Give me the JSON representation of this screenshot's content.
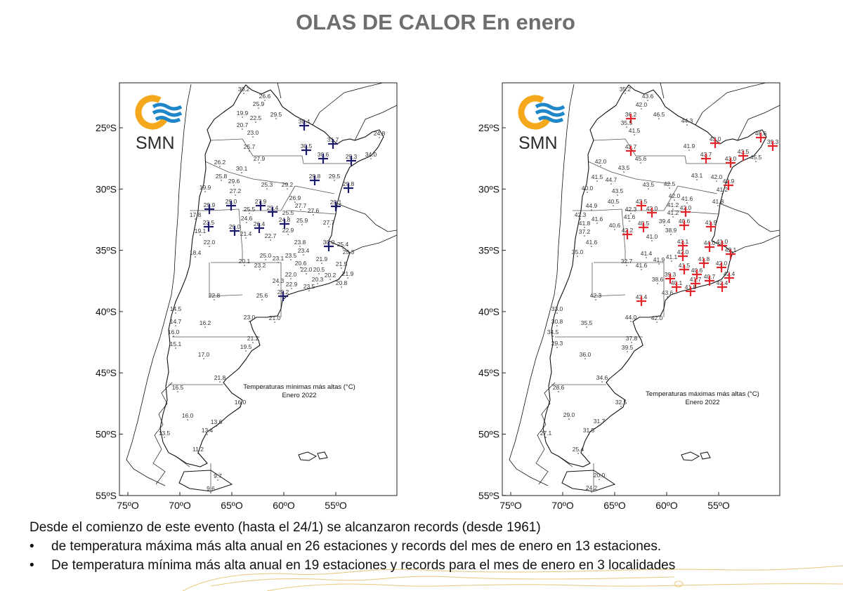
{
  "title": "OLAS DE CALOR En enero",
  "logo_text": "SMN",
  "axes": {
    "lat_labels": [
      "25ºS",
      "30ºS",
      "35ºS",
      "40ºS",
      "45ºS",
      "50ºS",
      "55ºS"
    ],
    "lon_labels": [
      "75ºO",
      "70ºO",
      "65ºO",
      "60ºO",
      "55ºO"
    ]
  },
  "colors": {
    "min_record_marker": "#1c1c6e",
    "max_record_marker": "#e3262b",
    "logo_sun": "#f5a81c",
    "logo_waves": "#1f86c8",
    "title": "#6e6e6e"
  },
  "left_map": {
    "caption_line1": "Temperaturas mínimas más altas (°C)",
    "caption_line2": "Enero 2022",
    "stations": [
      {
        "t": "30.2",
        "rec": false
      },
      {
        "t": "26.6",
        "rec": false
      },
      {
        "t": "25.9",
        "rec": false
      },
      {
        "t": "19.9",
        "rec": false
      },
      {
        "t": "22.5",
        "rec": false
      },
      {
        "t": "20.7",
        "rec": false
      },
      {
        "t": "23.0",
        "rec": false
      },
      {
        "t": "29.5",
        "rec": false
      },
      {
        "t": "30.4",
        "rec": true
      },
      {
        "t": "30.5",
        "rec": true
      },
      {
        "t": "30.6",
        "rec": true
      },
      {
        "t": "31.7",
        "rec": true
      },
      {
        "t": "29.3",
        "rec": true
      },
      {
        "t": "34.0",
        "rec": false
      },
      {
        "t": "24.8",
        "rec": false
      },
      {
        "t": "25.7",
        "rec": false
      },
      {
        "t": "27.9",
        "rec": false
      },
      {
        "t": "26.2",
        "rec": false
      },
      {
        "t": "30.1",
        "rec": false
      },
      {
        "t": "25.8",
        "rec": false
      },
      {
        "t": "29.6",
        "rec": false
      },
      {
        "t": "29.8",
        "rec": true
      },
      {
        "t": "29.5",
        "rec": false
      },
      {
        "t": "29.8",
        "rec": true
      },
      {
        "t": "25.3",
        "rec": false
      },
      {
        "t": "29.2",
        "rec": false
      },
      {
        "t": "19.9",
        "rec": false
      },
      {
        "t": "27.2",
        "rec": false
      },
      {
        "t": "29.9",
        "rec": true
      },
      {
        "t": "29.0",
        "rec": true
      },
      {
        "t": "27.9",
        "rec": true
      },
      {
        "t": "29.4",
        "rec": true
      },
      {
        "t": "25.5",
        "rec": false
      },
      {
        "t": "26.9",
        "rec": false
      },
      {
        "t": "27.7",
        "rec": false
      },
      {
        "t": "27.6",
        "rec": false
      },
      {
        "t": "29.1",
        "rec": true
      },
      {
        "t": "17.8",
        "rec": false
      },
      {
        "t": "23.5",
        "rec": true
      },
      {
        "t": "19.1",
        "rec": false
      },
      {
        "t": "24.6",
        "rec": false
      },
      {
        "t": "29.0",
        "rec": true
      },
      {
        "t": "21.4",
        "rec": false
      },
      {
        "t": "26.4",
        "rec": true
      },
      {
        "t": "25.5",
        "rec": false
      },
      {
        "t": "24.8",
        "rec": true
      },
      {
        "t": "25.9",
        "rec": false
      },
      {
        "t": "27.7",
        "rec": false
      },
      {
        "t": "22.0",
        "rec": false
      },
      {
        "t": "22.7",
        "rec": false
      },
      {
        "t": "22.9",
        "rec": false
      },
      {
        "t": "23.8",
        "rec": false
      },
      {
        "t": "30.0",
        "rec": true
      },
      {
        "t": "25.4",
        "rec": false
      },
      {
        "t": "25.3",
        "rec": false
      },
      {
        "t": "18.4",
        "rec": false
      },
      {
        "t": "23.4",
        "rec": false
      },
      {
        "t": "25.0",
        "rec": false
      },
      {
        "t": "23.1",
        "rec": false
      },
      {
        "t": "23.5",
        "rec": false
      },
      {
        "t": "20.6",
        "rec": false
      },
      {
        "t": "21.9",
        "rec": false
      },
      {
        "t": "21.5",
        "rec": false
      },
      {
        "t": "20.1",
        "rec": false
      },
      {
        "t": "23.2",
        "rec": false
      },
      {
        "t": "22.0",
        "rec": false
      },
      {
        "t": "20.5",
        "rec": false
      },
      {
        "t": "20.2",
        "rec": false
      },
      {
        "t": "21.9",
        "rec": false
      },
      {
        "t": "22.0",
        "rec": false
      },
      {
        "t": "24.3",
        "rec": false
      },
      {
        "t": "20.3",
        "rec": false
      },
      {
        "t": "20.8",
        "rec": false
      },
      {
        "t": "22.9",
        "rec": false
      },
      {
        "t": "23.5",
        "rec": false
      },
      {
        "t": "29.2",
        "rec": true
      },
      {
        "t": "25.6",
        "rec": false
      },
      {
        "t": "22.8",
        "rec": false
      },
      {
        "t": "14.5",
        "rec": false
      },
      {
        "t": "14.7",
        "rec": false
      },
      {
        "t": "16.2",
        "rec": false
      },
      {
        "t": "23.0",
        "rec": false
      },
      {
        "t": "21.0",
        "rec": false
      },
      {
        "t": "16.0",
        "rec": false
      },
      {
        "t": "15.1",
        "rec": false
      },
      {
        "t": "17.0",
        "rec": false
      },
      {
        "t": "21.2",
        "rec": false
      },
      {
        "t": "19.5",
        "rec": false
      },
      {
        "t": "21.8",
        "rec": false
      },
      {
        "t": "16.5",
        "rec": false
      },
      {
        "t": "16.0",
        "rec": false
      },
      {
        "t": "16.0",
        "rec": false
      },
      {
        "t": "13.6",
        "rec": false
      },
      {
        "t": "13.4",
        "rec": false
      },
      {
        "t": "13.5",
        "rec": false
      },
      {
        "t": "11.2",
        "rec": false
      },
      {
        "t": "9.7",
        "rec": false
      },
      {
        "t": "9.6",
        "rec": false
      }
    ]
  },
  "right_map": {
    "caption_line1": "Temperaturas máximas más altas (°C)",
    "caption_line2": "Enero 2022",
    "stations": [
      {
        "t": "35.2",
        "rec": false
      },
      {
        "t": "43.6",
        "rec": false
      },
      {
        "t": "42.0",
        "rec": false
      },
      {
        "t": "36.2",
        "rec": true
      },
      {
        "t": "35.5",
        "rec": false
      },
      {
        "t": "46.5",
        "rec": false
      },
      {
        "t": "41.5",
        "rec": false
      },
      {
        "t": "44.3",
        "rec": false
      },
      {
        "t": "43.0",
        "rec": true
      },
      {
        "t": "41.9",
        "rec": false
      },
      {
        "t": "42.7",
        "rec": true
      },
      {
        "t": "45.6",
        "rec": false
      },
      {
        "t": "43.7",
        "rec": true
      },
      {
        "t": "43.0",
        "rec": true
      },
      {
        "t": "43.5",
        "rec": true
      },
      {
        "t": "45.5",
        "rec": false
      },
      {
        "t": "46.6",
        "rec": true
      },
      {
        "t": "39.3",
        "rec": true
      },
      {
        "t": "42.0",
        "rec": false
      },
      {
        "t": "43.5",
        "rec": false
      },
      {
        "t": "41.5",
        "rec": false
      },
      {
        "t": "44.7",
        "rec": false
      },
      {
        "t": "43.1",
        "rec": false
      },
      {
        "t": "42.0",
        "rec": false
      },
      {
        "t": "42.9",
        "rec": true
      },
      {
        "t": "41.2",
        "rec": false
      },
      {
        "t": "40.0",
        "rec": false
      },
      {
        "t": "43.5",
        "rec": false
      },
      {
        "t": "43.5",
        "rec": false
      },
      {
        "t": "42.5",
        "rec": false
      },
      {
        "t": "44.9",
        "rec": false
      },
      {
        "t": "40.5",
        "rec": false
      },
      {
        "t": "42.3",
        "rec": false
      },
      {
        "t": "43.5",
        "rec": true
      },
      {
        "t": "42.0",
        "rec": true
      },
      {
        "t": "42.0",
        "rec": false
      },
      {
        "t": "41.6",
        "rec": false
      },
      {
        "t": "41.2",
        "rec": false
      },
      {
        "t": "42.0",
        "rec": true
      },
      {
        "t": "41.8",
        "rec": false
      },
      {
        "t": "42.3",
        "rec": false
      },
      {
        "t": "41.8",
        "rec": false
      },
      {
        "t": "41.6",
        "rec": false
      },
      {
        "t": "41.6",
        "rec": false
      },
      {
        "t": "40.6",
        "rec": false
      },
      {
        "t": "40.5",
        "rec": true
      },
      {
        "t": "42.2",
        "rec": true
      },
      {
        "t": "41.2",
        "rec": false
      },
      {
        "t": "39.4",
        "rec": false
      },
      {
        "t": "40.6",
        "rec": true
      },
      {
        "t": "38.9",
        "rec": false
      },
      {
        "t": "41.0",
        "rec": false
      },
      {
        "t": "41.9",
        "rec": true
      },
      {
        "t": "37.2",
        "rec": false
      },
      {
        "t": "41.6",
        "rec": false
      },
      {
        "t": "35.0",
        "rec": false
      },
      {
        "t": "43.1",
        "rec": true
      },
      {
        "t": "44.0",
        "rec": true
      },
      {
        "t": "41.0",
        "rec": true
      },
      {
        "t": "42.1",
        "rec": true
      },
      {
        "t": "41.4",
        "rec": false
      },
      {
        "t": "42.0",
        "rec": true
      },
      {
        "t": "32.7",
        "rec": false
      },
      {
        "t": "41.9",
        "rec": false
      },
      {
        "t": "41.1",
        "rec": false
      },
      {
        "t": "41.6",
        "rec": false
      },
      {
        "t": "41.5",
        "rec": true
      },
      {
        "t": "41.8",
        "rec": true
      },
      {
        "t": "42.0",
        "rec": true
      },
      {
        "t": "40.6",
        "rec": true
      },
      {
        "t": "40.7",
        "rec": true
      },
      {
        "t": "42.4",
        "rec": true
      },
      {
        "t": "39.3",
        "rec": true
      },
      {
        "t": "38.6",
        "rec": false
      },
      {
        "t": "41.7",
        "rec": true
      },
      {
        "t": "40.1",
        "rec": true
      },
      {
        "t": "42.4",
        "rec": true
      },
      {
        "t": "41.8",
        "rec": true
      },
      {
        "t": "42.3",
        "rec": false
      },
      {
        "t": "43.6",
        "rec": false
      },
      {
        "t": "43.4",
        "rec": true
      },
      {
        "t": "33.0",
        "rec": false
      },
      {
        "t": "30.8",
        "rec": false
      },
      {
        "t": "35.5",
        "rec": false
      },
      {
        "t": "44.0",
        "rec": false
      },
      {
        "t": "42.0",
        "rec": false
      },
      {
        "t": "34.5",
        "rec": false
      },
      {
        "t": "29.3",
        "rec": false
      },
      {
        "t": "36.0",
        "rec": false
      },
      {
        "t": "37.8",
        "rec": false
      },
      {
        "t": "39.5",
        "rec": false
      },
      {
        "t": "34.6",
        "rec": false
      },
      {
        "t": "28.6",
        "rec": false
      },
      {
        "t": "32.5",
        "rec": false
      },
      {
        "t": "29.0",
        "rec": false
      },
      {
        "t": "31.7",
        "rec": false
      },
      {
        "t": "31.5",
        "rec": false
      },
      {
        "t": "27.1",
        "rec": false
      },
      {
        "t": "25.4",
        "rec": false
      },
      {
        "t": "20.0",
        "rec": false
      },
      {
        "t": "24.2",
        "rec": false
      }
    ]
  },
  "notes": {
    "intro": "Desde el comienzo de este evento (hasta el 24/1) se alcanzaron records (desde 1961)",
    "bullets": [
      "de temperatura máxima más alta anual en 26 estaciones y records del mes de enero en 13 estaciones.",
      "De temperatura mínima más alta anual en 19 estaciones y records para el mes de enero en 3 localidades"
    ]
  }
}
